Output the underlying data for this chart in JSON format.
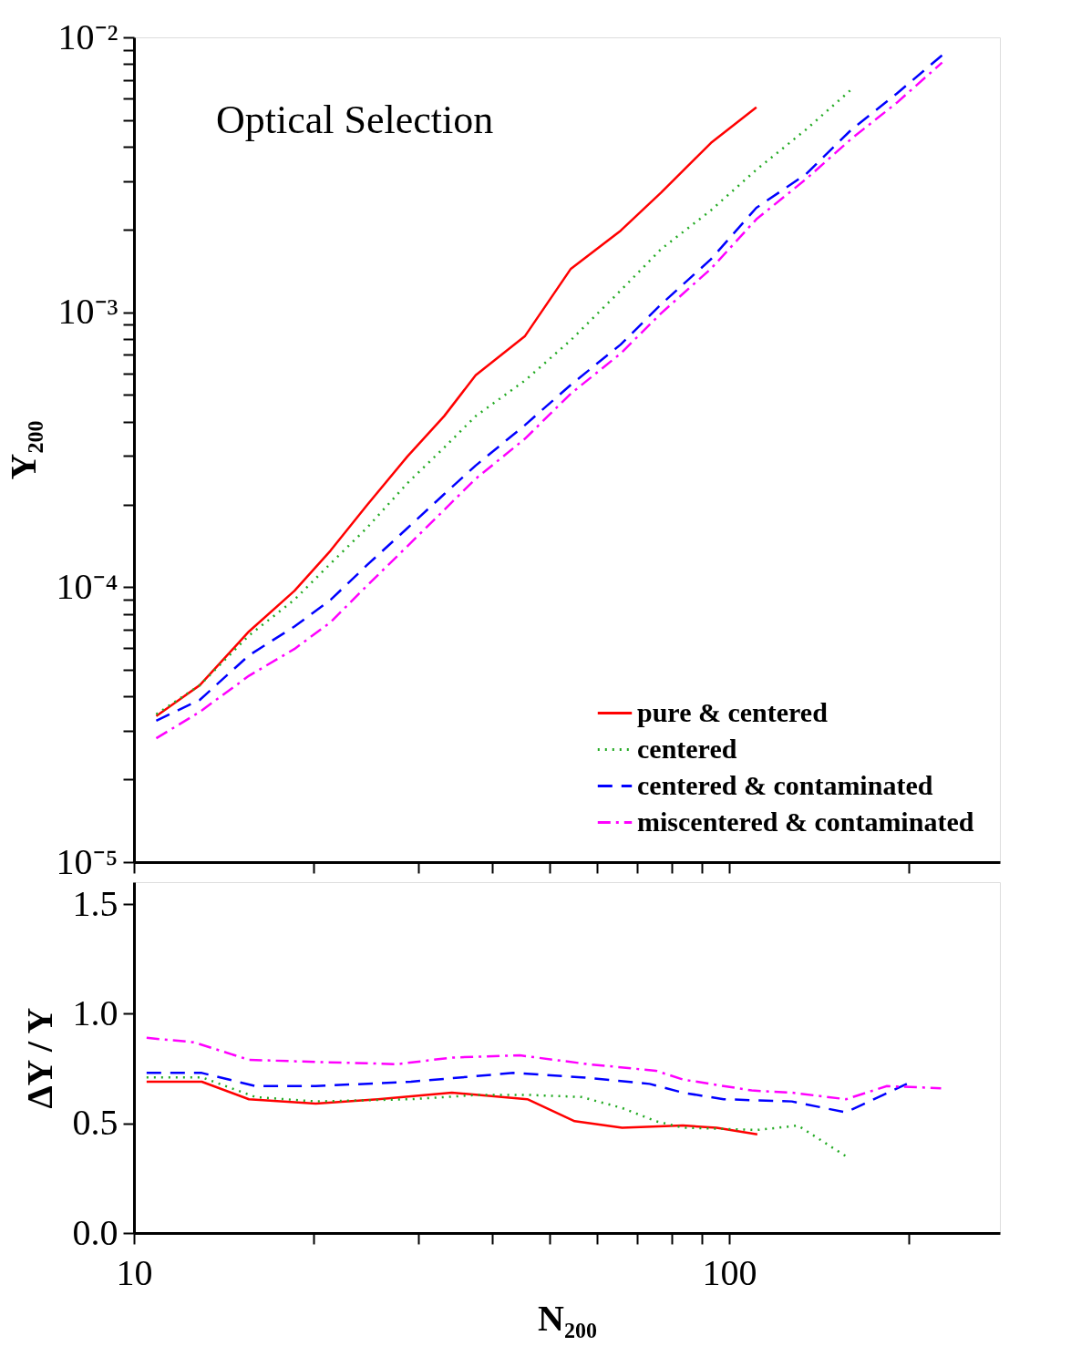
{
  "chart_data": [
    {
      "type": "line",
      "ylabel": "Y₂₀₀",
      "annotations": [
        "Optical Selection"
      ],
      "legend": "bottom right",
      "log": "xy",
      "grid": false,
      "tick_labels": "y",
      "marker": "none",
      "xlim": [
        10,
        285
      ],
      "xticks": [
        10,
        {
          "value": 20,
          "label": null
        },
        {
          "value": 30,
          "label": null
        },
        {
          "value": 40,
          "label": null
        },
        {
          "value": 50,
          "label": null
        },
        {
          "value": 60,
          "label": null
        },
        {
          "value": 70,
          "label": null
        },
        {
          "value": 80,
          "label": null
        },
        {
          "value": 90,
          "label": null
        },
        100,
        {
          "value": 200,
          "label": null
        }
      ],
      "ylim": [
        1e-05,
        0.01
      ],
      "yticks": [
        {
          "value": 1e-05,
          "label": "10⁻⁵"
        },
        {
          "value": 2e-05,
          "label": null
        },
        {
          "value": 3e-05,
          "label": null
        },
        {
          "value": 4e-05,
          "label": null
        },
        {
          "value": 5e-05,
          "label": null
        },
        {
          "value": 6e-05,
          "label": null
        },
        {
          "value": 7e-05,
          "label": null
        },
        {
          "value": 8e-05,
          "label": null
        },
        {
          "value": 9e-05,
          "label": null
        },
        {
          "value": 0.0001,
          "label": "10⁻⁴"
        },
        {
          "value": 0.0002,
          "label": null
        },
        {
          "value": 0.0003,
          "label": null
        },
        {
          "value": 0.0004,
          "label": null
        },
        {
          "value": 0.0005,
          "label": null
        },
        {
          "value": 0.0006,
          "label": null
        },
        {
          "value": 0.0007,
          "label": null
        },
        {
          "value": 0.0008,
          "label": null
        },
        {
          "value": 0.0009,
          "label": null
        },
        {
          "value": 0.001,
          "label": "10⁻³"
        },
        {
          "value": 0.002,
          "label": null
        },
        {
          "value": 0.003,
          "label": null
        },
        {
          "value": 0.004,
          "label": null
        },
        {
          "value": 0.005,
          "label": null
        },
        {
          "value": 0.006,
          "label": null
        },
        {
          "value": 0.007,
          "label": null
        },
        {
          "value": 0.008,
          "label": null
        },
        {
          "value": 0.009,
          "label": null
        },
        {
          "value": 0.01,
          "label": "10⁻²"
        }
      ],
      "series": [
        {
          "name": "pure & centered",
          "color": "#ff0000",
          "line_style": "solid",
          "x": [
            10.9,
            12.9,
            15.6,
            18.6,
            21.4,
            24.6,
            28.8,
            33.2,
            37.5,
            45.4,
            54.2,
            65.7,
            76.9,
            93.2,
            111.1
          ],
          "values": [
            3.4e-05,
            4.4e-05,
            6.9e-05,
            9.7e-05,
            0.000136,
            0.000198,
            0.000299,
            0.000419,
            0.00059,
            0.00082,
            0.00144,
            0.00198,
            0.00273,
            0.00413,
            0.00557
          ]
        },
        {
          "name": "centered",
          "color": "#22aa22",
          "line_style": "dotted",
          "x": [
            10.9,
            12.9,
            15.6,
            18.6,
            21.4,
            24.6,
            28.8,
            33.2,
            37.5,
            45.4,
            54.2,
            65.7,
            76.9,
            93.2,
            111.1,
            134.6,
            160.5
          ],
          "values": [
            3.45e-05,
            4.4e-05,
            6.67e-05,
            9e-05,
            0.000122,
            0.000164,
            0.000239,
            0.000322,
            0.000419,
            0.000565,
            0.000792,
            0.0012,
            0.0017,
            0.00235,
            0.0033,
            0.00462,
            0.00647
          ]
        },
        {
          "name": "centered & contaminated",
          "color": "#0000ff",
          "line_style": "dashed",
          "x": [
            10.9,
            12.9,
            15.6,
            18.6,
            21.4,
            24.6,
            28.8,
            33.2,
            37.5,
            45.4,
            54.2,
            65.7,
            76.9,
            93.2,
            111.1,
            134.6,
            160.5,
            191.2,
            227.9
          ],
          "values": [
            3.27e-05,
            3.89e-05,
            5.65e-05,
            7.19e-05,
            9e-05,
            0.00012,
            0.000164,
            0.000218,
            0.000277,
            0.000389,
            0.000545,
            0.000763,
            0.00107,
            0.00156,
            0.0024,
            0.00318,
            0.00462,
            0.00624,
            0.00861
          ]
        },
        {
          "name": "miscentered & contaminated",
          "color": "#ff00ff",
          "line_style": "dashdot",
          "x": [
            10.9,
            12.9,
            15.6,
            18.6,
            21.4,
            24.6,
            28.8,
            33.2,
            37.5,
            45.4,
            54.2,
            65.7,
            76.9,
            93.2,
            111.1,
            134.6,
            160.5,
            191.2,
            227.9
          ],
          "values": [
            2.82e-05,
            3.52e-05,
            4.76e-05,
            5.96e-05,
            7.46e-05,
            0.000101,
            0.000141,
            0.000191,
            0.000248,
            0.000347,
            0.000506,
            0.000708,
            0.000993,
            0.00144,
            0.00218,
            0.00305,
            0.00428,
            0.00578,
            0.0081
          ]
        }
      ]
    },
    {
      "type": "line",
      "xlabel": "N₂₀₀",
      "ylabel": "ΔY / Y",
      "legend": false,
      "log": "x",
      "grid": false,
      "marker": "none",
      "xlim": [
        10,
        285
      ],
      "xticks": [
        10,
        {
          "value": 20,
          "label": null
        },
        {
          "value": 30,
          "label": null
        },
        {
          "value": 40,
          "label": null
        },
        {
          "value": 50,
          "label": null
        },
        {
          "value": 60,
          "label": null
        },
        {
          "value": 70,
          "label": null
        },
        {
          "value": 80,
          "label": null
        },
        {
          "value": 90,
          "label": null
        },
        100,
        {
          "value": 200,
          "label": null
        }
      ],
      "ylim": [
        0,
        1.6
      ],
      "yticks": [
        {
          "value": 0.0,
          "label": "0.0"
        },
        {
          "value": 0.5,
          "label": "0.5"
        },
        {
          "value": 1.0,
          "label": "1.0"
        },
        {
          "value": 1.5,
          "label": "1.5"
        }
      ],
      "series": [
        {
          "color": "#ff0000",
          "line_style": "solid",
          "x": [
            10.5,
            13.0,
            15.6,
            20.2,
            25.7,
            34.2,
            45.8,
            55.0,
            66.1,
            83.6,
            95.2,
            111.5
          ],
          "values": [
            0.69,
            0.69,
            0.61,
            0.59,
            0.61,
            0.64,
            0.61,
            0.51,
            0.48,
            0.49,
            0.48,
            0.45
          ]
        },
        {
          "color": "#22aa22",
          "line_style": "dotted",
          "x": [
            10.5,
            13.0,
            16.0,
            20.2,
            29.2,
            38.0,
            45.8,
            56.5,
            66.1,
            75.3,
            83.6,
            111.5,
            130.5,
            157.1
          ],
          "values": [
            0.71,
            0.71,
            0.62,
            0.6,
            0.61,
            0.63,
            0.63,
            0.62,
            0.57,
            0.51,
            0.48,
            0.47,
            0.49,
            0.35
          ]
        },
        {
          "color": "#0000ff",
          "line_style": "dashed",
          "x": [
            10.5,
            13.0,
            16.0,
            20.2,
            29.2,
            43.4,
            56.5,
            73.5,
            83.6,
            97.9,
            127.4,
            157.1,
            198.8
          ],
          "values": [
            0.73,
            0.73,
            0.67,
            0.67,
            0.69,
            0.73,
            0.71,
            0.68,
            0.64,
            0.61,
            0.6,
            0.55,
            0.68
          ]
        },
        {
          "color": "#ff00ff",
          "line_style": "dashdot",
          "x": [
            10.5,
            12.6,
            15.6,
            20.2,
            27.7,
            34.2,
            44.5,
            57.9,
            75.3,
            83.6,
            109.1,
            127.4,
            157.1,
            184.1,
            227.0
          ],
          "values": [
            0.89,
            0.87,
            0.79,
            0.78,
            0.77,
            0.8,
            0.81,
            0.77,
            0.74,
            0.7,
            0.65,
            0.64,
            0.61,
            0.67,
            0.66
          ]
        }
      ]
    }
  ]
}
